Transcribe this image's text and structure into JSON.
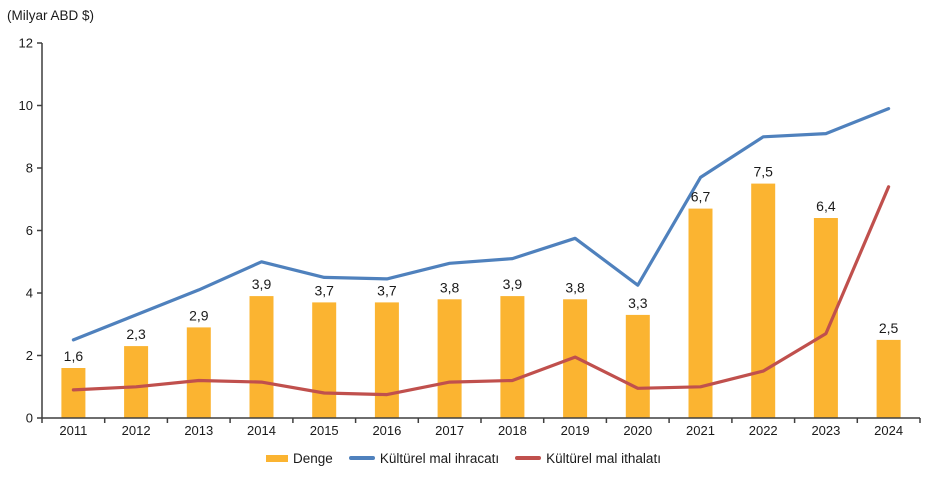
{
  "chart_data": {
    "type": "combo-bar-line",
    "title": "(Milyar ABD $)",
    "categories": [
      "2011",
      "2012",
      "2013",
      "2014",
      "2015",
      "2016",
      "2017",
      "2018",
      "2019",
      "2020",
      "2021",
      "2022",
      "2023",
      "2024"
    ],
    "series": [
      {
        "name": "Denge",
        "type": "bar",
        "color": "#FBB431",
        "values": [
          1.6,
          2.3,
          2.9,
          3.9,
          3.7,
          3.7,
          3.8,
          3.9,
          3.8,
          3.3,
          6.7,
          7.5,
          6.4,
          2.5
        ],
        "labels": [
          "1,6",
          "2,3",
          "2,9",
          "3,9",
          "3,7",
          "3,7",
          "3,8",
          "3,9",
          "3,8",
          "3,3",
          "6,7",
          "7,5",
          "6,4",
          "2,5"
        ]
      },
      {
        "name": "Kültürel mal ihracatı",
        "type": "line",
        "color": "#4F81BD",
        "values": [
          2.5,
          3.3,
          4.1,
          5.0,
          4.5,
          4.45,
          4.95,
          5.1,
          5.75,
          4.25,
          7.7,
          9.0,
          9.1,
          9.9
        ]
      },
      {
        "name": "Kültürel mal ithalatı",
        "type": "line",
        "color": "#C0504D",
        "values": [
          0.9,
          1.0,
          1.2,
          1.15,
          0.8,
          0.75,
          1.15,
          1.2,
          1.95,
          0.95,
          1.0,
          1.5,
          2.7,
          7.4
        ]
      }
    ],
    "ylim": [
      0,
      12
    ],
    "yticks": [
      0,
      2,
      4,
      6,
      8,
      10,
      12
    ],
    "grid": false,
    "legend_position": "bottom",
    "axis_color": "#3f3f3f",
    "text_color": "#1a1a1a"
  }
}
